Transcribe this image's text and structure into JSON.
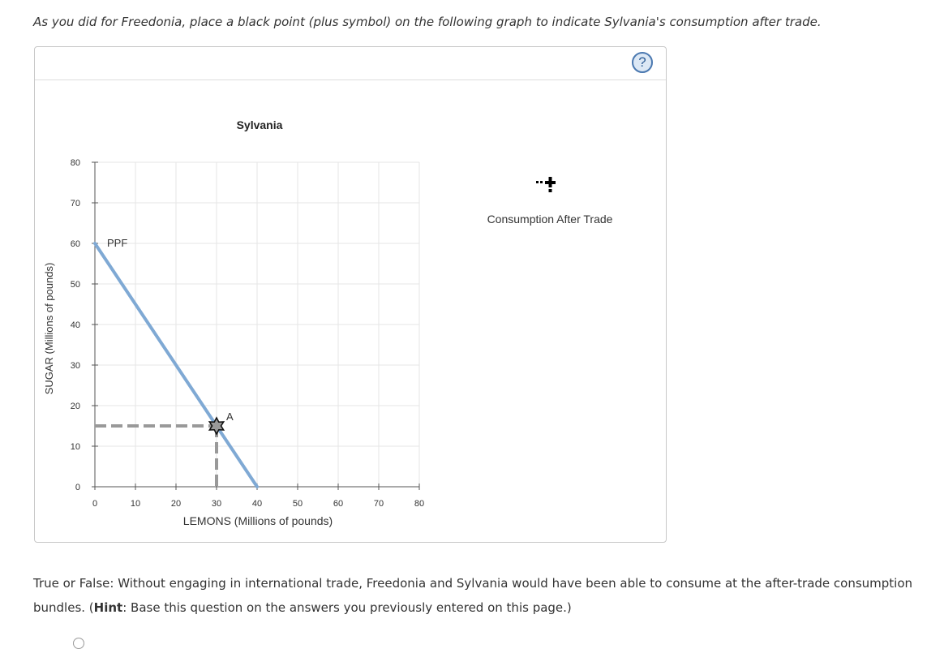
{
  "instruction": "As you did for Freedonia, place a black point (plus symbol) on the following graph to indicate Sylvania's consumption after trade.",
  "help_button": {
    "label": "?"
  },
  "chart_data": {
    "type": "line",
    "title": "Sylvania",
    "xlabel": "LEMONS (Millions of pounds)",
    "ylabel": "SUGAR (Millions of pounds)",
    "xlim": [
      0,
      80
    ],
    "ylim": [
      0,
      80
    ],
    "xticks": [
      0,
      10,
      20,
      30,
      40,
      50,
      60,
      70,
      80
    ],
    "yticks": [
      0,
      10,
      20,
      30,
      40,
      50,
      60,
      70,
      80
    ],
    "grid": true,
    "series": [
      {
        "name": "PPF",
        "x": [
          0,
          40
        ],
        "y": [
          60,
          0
        ],
        "color": "#7fa9d4"
      }
    ],
    "points": [
      {
        "label": "A",
        "x": 30,
        "y": 15
      }
    ],
    "palette": [
      {
        "label": "Consumption After Trade",
        "symbol": "plus",
        "color": "#000000"
      }
    ]
  },
  "question": {
    "text_before": "True or False: Without engaging in international trade, Freedonia and Sylvania would have been able to consume at the after-trade consumption bundles. (",
    "hint_label": "Hint",
    "text_after": ": Base this question on the answers you previously entered on this page.)"
  }
}
